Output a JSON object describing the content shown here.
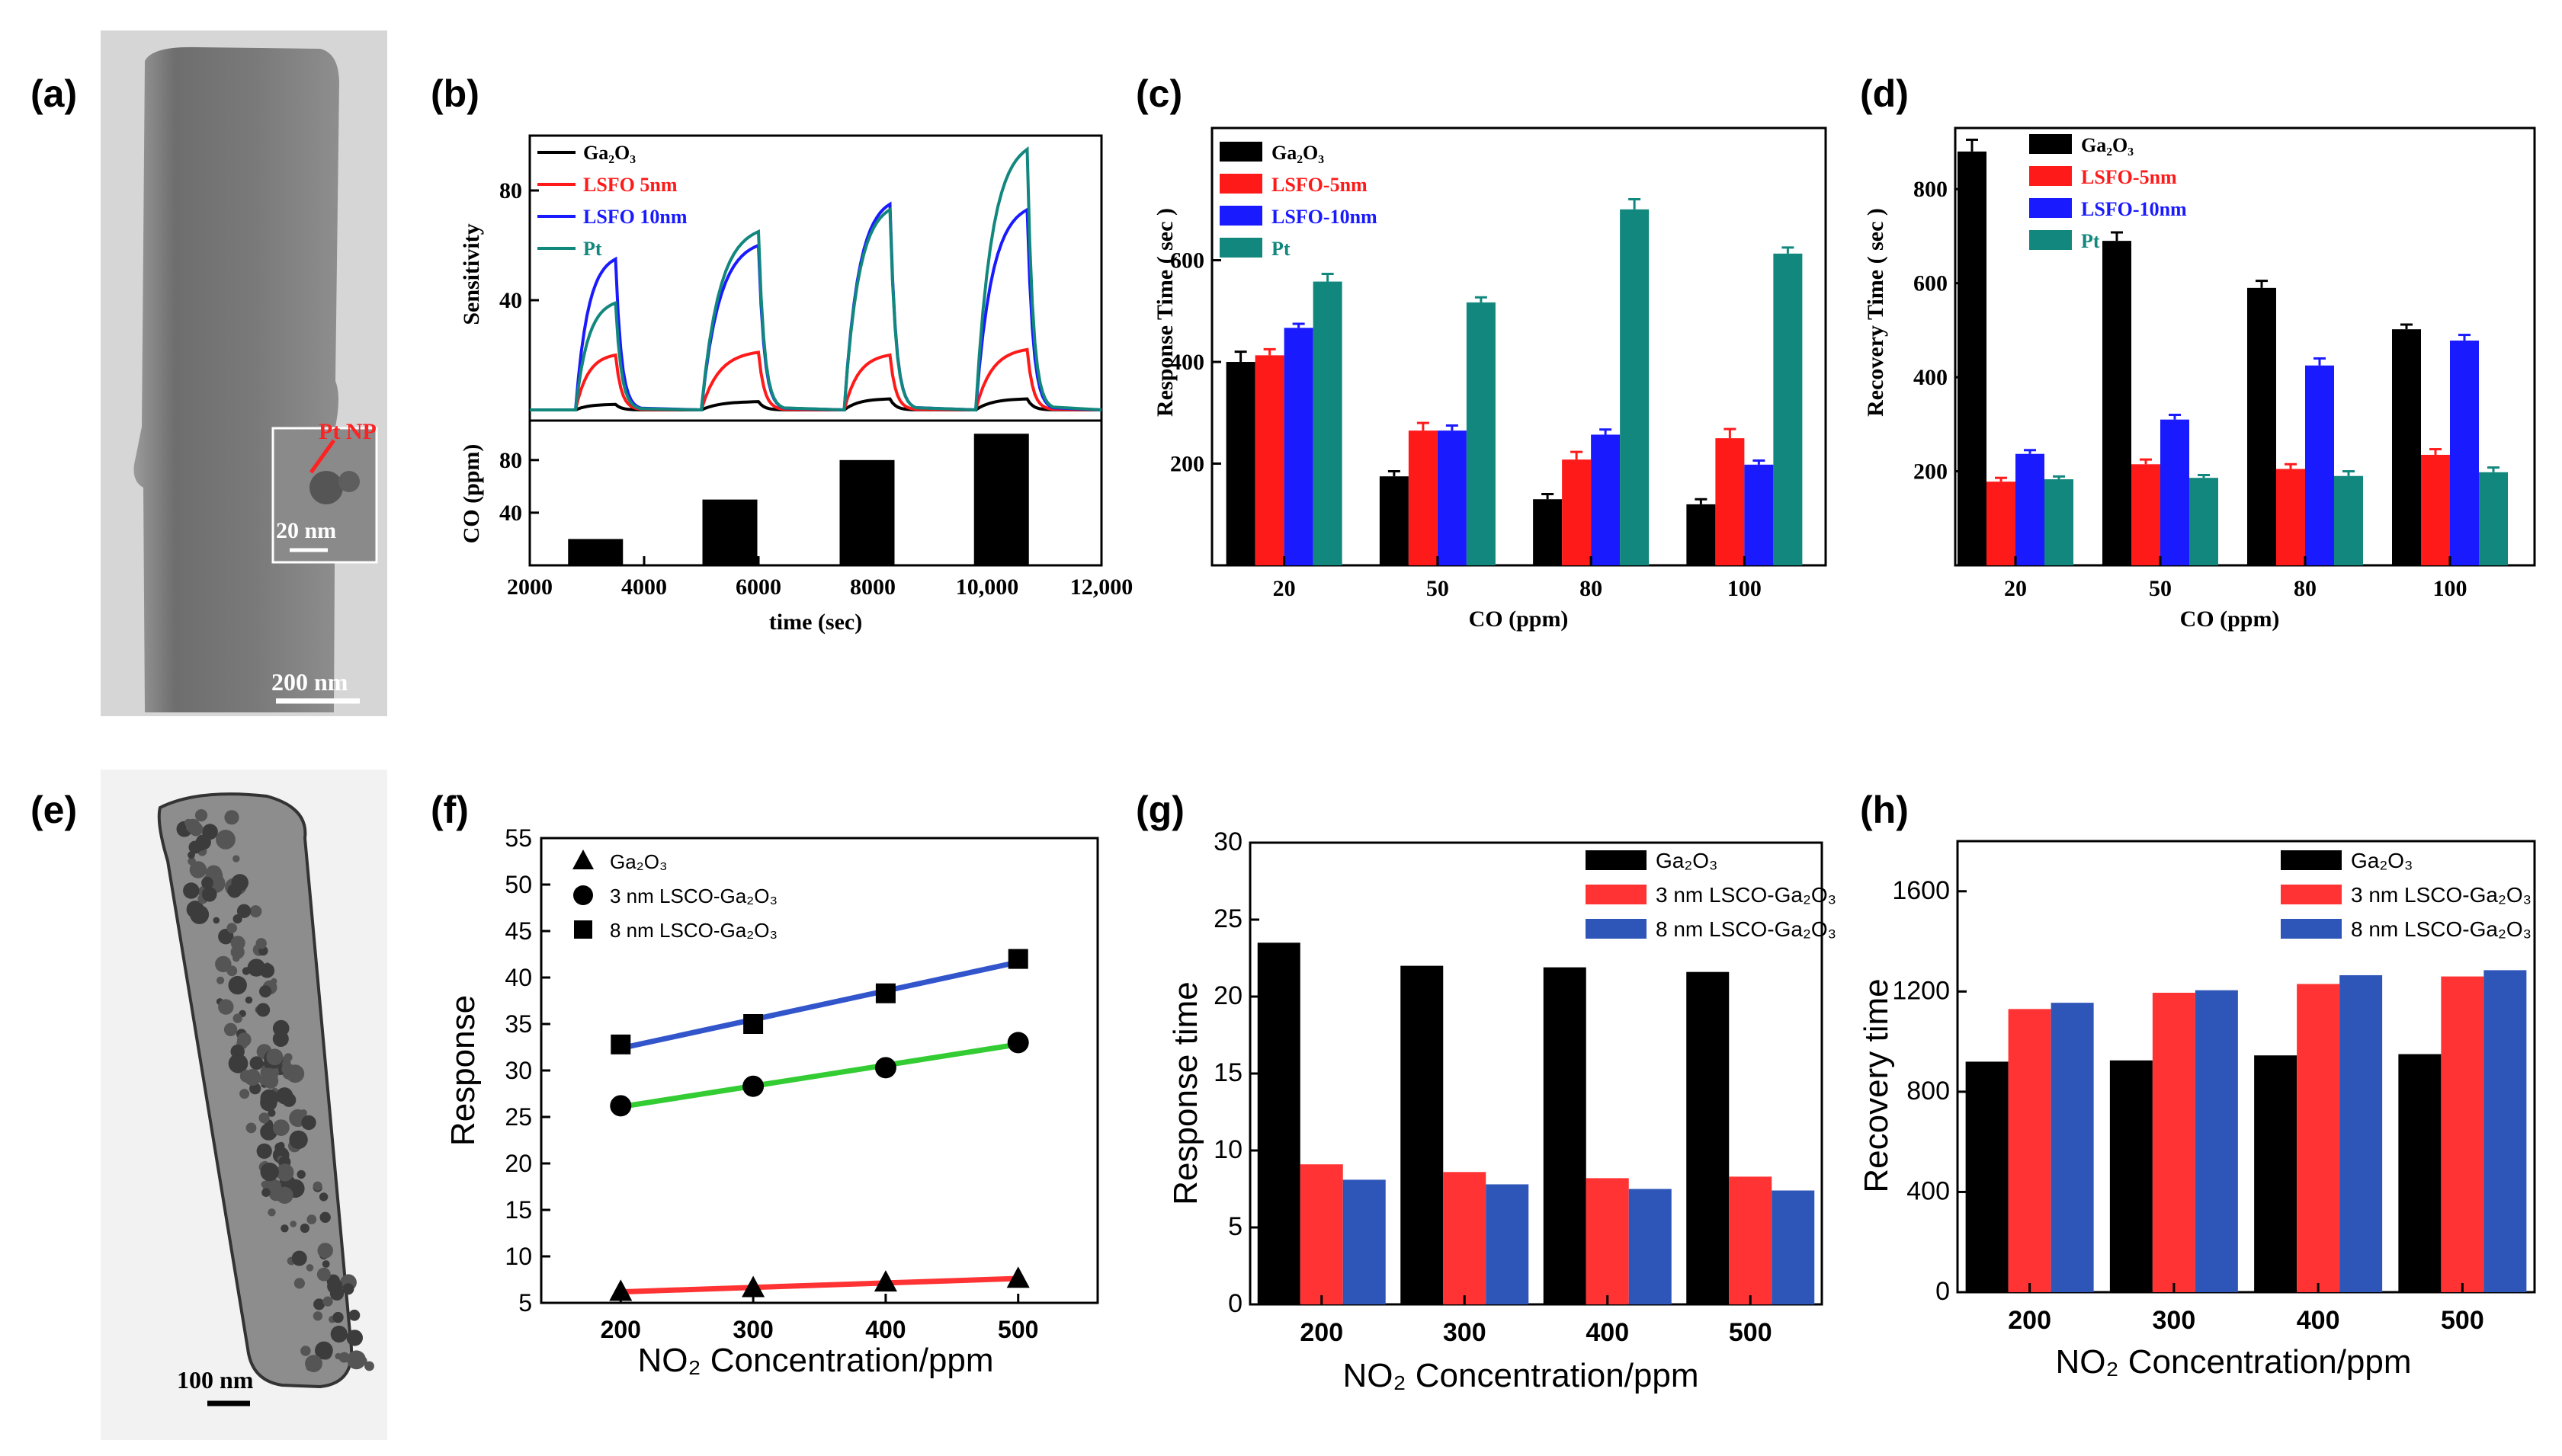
{
  "panels": {
    "a": {
      "label": "(a)",
      "inset_label": "Pt NP",
      "inset_scale": "20 nm",
      "scale": "200 nm"
    },
    "e": {
      "label": "(e)",
      "scale": "100 nm"
    }
  },
  "colors": {
    "black": "#000000",
    "red": "#ff1a1a",
    "blue": "#1a1aff",
    "teal": "#12877d",
    "g_red": "#ff3333",
    "g_blue": "#2e55b8",
    "fit_green": "#33cc33",
    "fit_red": "#ff3333",
    "fit_blue": "#3355cc"
  },
  "chart_data": [
    {
      "id": "b",
      "type": "line",
      "label": "(b)",
      "ylabel_top": "Sensitivity",
      "ylabel_bottom": "CO (ppm)",
      "xlabel": "time (sec)",
      "xlim": [
        2000,
        12000
      ],
      "xticks": [
        "2000",
        "4000",
        "6000",
        "8000",
        "10,000",
        "12,000"
      ],
      "ylim_top": [
        0,
        100
      ],
      "yticks_top": [
        "40",
        "80"
      ],
      "ylim_bottom": [
        0,
        110
      ],
      "yticks_bottom": [
        "40",
        "80"
      ],
      "legend": [
        "Ga₂O₃",
        "LSFO 5nm",
        "LSFO 10nm",
        "Pt"
      ],
      "pulses": [
        {
          "start": 2800,
          "end": 3500,
          "co_ppm": 20,
          "peaks": {
            "Ga2O3": 2,
            "LSFO 5nm": 20,
            "LSFO 10nm": 55,
            "Pt": 39
          }
        },
        {
          "start": 5000,
          "end": 6000,
          "co_ppm": 50,
          "peaks": {
            "Ga2O3": 3,
            "LSFO 5nm": 21,
            "LSFO 10nm": 60,
            "Pt": 65
          }
        },
        {
          "start": 7500,
          "end": 8300,
          "co_ppm": 80,
          "peaks": {
            "Ga2O3": 4,
            "LSFO 5nm": 20,
            "LSFO 10nm": 75,
            "Pt": 73
          }
        },
        {
          "start": 9800,
          "end": 10700,
          "co_ppm": 100,
          "peaks": {
            "Ga2O3": 4,
            "LSFO 5nm": 22,
            "LSFO 10nm": 73,
            "Pt": 95
          }
        }
      ]
    },
    {
      "id": "c",
      "type": "bar",
      "label": "(c)",
      "style": "serif",
      "ylabel": "Response Time ( sec )",
      "xlabel": "CO (ppm)",
      "categories": [
        "20",
        "50",
        "80",
        "100"
      ],
      "ylim": [
        0,
        860
      ],
      "yticks": [
        "200",
        "400",
        "600"
      ],
      "series": [
        {
          "name": "Ga₂O₃",
          "color": "#000000",
          "values": [
            400,
            175,
            130,
            120
          ],
          "errors": [
            20,
            10,
            10,
            10
          ]
        },
        {
          "name": "LSFO-5nm",
          "color": "#ff1a1a",
          "values": [
            413,
            265,
            208,
            250
          ],
          "errors": [
            12,
            15,
            15,
            18
          ]
        },
        {
          "name": "LSFO-10nm",
          "color": "#1a1aff",
          "values": [
            467,
            265,
            257,
            198
          ],
          "errors": [
            8,
            10,
            10,
            8
          ]
        },
        {
          "name": "Pt",
          "color": "#12877d",
          "values": [
            558,
            517,
            700,
            613
          ],
          "errors": [
            15,
            10,
            20,
            12
          ]
        }
      ]
    },
    {
      "id": "d",
      "type": "bar",
      "label": "(d)",
      "style": "serif",
      "ylabel": "Recovery Time ( sec )",
      "xlabel": "CO (ppm)",
      "categories": [
        "20",
        "50",
        "80",
        "100"
      ],
      "ylim": [
        0,
        930
      ],
      "yticks": [
        "200",
        "400",
        "600",
        "800"
      ],
      "series": [
        {
          "name": "Ga₂O₃",
          "color": "#000000",
          "values": [
            880,
            690,
            590,
            502
          ],
          "errors": [
            25,
            18,
            15,
            10
          ]
        },
        {
          "name": "LSFO-5nm",
          "color": "#ff1a1a",
          "values": [
            178,
            215,
            205,
            235
          ],
          "errors": [
            8,
            10,
            10,
            12
          ]
        },
        {
          "name": "LSFO-10nm",
          "color": "#1a1aff",
          "values": [
            237,
            310,
            425,
            478
          ],
          "errors": [
            8,
            10,
            15,
            12
          ]
        },
        {
          "name": "Pt",
          "color": "#12877d",
          "values": [
            183,
            186,
            190,
            198
          ],
          "errors": [
            6,
            6,
            10,
            10
          ]
        }
      ]
    },
    {
      "id": "f",
      "type": "scatter",
      "label": "(f)",
      "ylabel": "Response",
      "xlabel": "NO₂ Concentration/ppm",
      "x": [
        200,
        300,
        400,
        500
      ],
      "xlim": [
        140,
        560
      ],
      "ylim": [
        5,
        55
      ],
      "xticks": [
        "200",
        "300",
        "400",
        "500"
      ],
      "yticks": [
        "5",
        "10",
        "15",
        "20",
        "25",
        "30",
        "35",
        "40",
        "45",
        "50",
        "55"
      ],
      "series": [
        {
          "name": "Ga₂O₃",
          "marker": "triangle",
          "fit": "#ff3333",
          "values": [
            6.2,
            6.6,
            7.2,
            7.6
          ]
        },
        {
          "name": "3 nm LSCO-Ga₂O₃",
          "marker": "circle",
          "fit": "#33cc33",
          "values": [
            26.2,
            28.3,
            30.3,
            33.0
          ]
        },
        {
          "name": "8 nm LSCO-Ga₂O₃",
          "marker": "square",
          "fit": "#3355cc",
          "values": [
            32.8,
            35.0,
            38.3,
            42.0
          ]
        }
      ]
    },
    {
      "id": "g",
      "type": "bar",
      "label": "(g)",
      "style": "sans",
      "ylabel": "Response time",
      "xlabel": "NO₂ Concentration/ppm",
      "categories": [
        "200",
        "300",
        "400",
        "500"
      ],
      "ylim": [
        0,
        30
      ],
      "yticks": [
        "0",
        "5",
        "10",
        "15",
        "20",
        "25",
        "30"
      ],
      "series": [
        {
          "name": "Ga₂O₃",
          "color": "#000000",
          "values": [
            23.5,
            22.0,
            21.9,
            21.6
          ]
        },
        {
          "name": "3 nm LSCO-Ga₂O₃",
          "color": "#ff3333",
          "values": [
            9.1,
            8.6,
            8.2,
            8.3
          ]
        },
        {
          "name": "8 nm LSCO-Ga₂O₃",
          "color": "#2e55b8",
          "values": [
            8.1,
            7.8,
            7.5,
            7.4
          ]
        }
      ]
    },
    {
      "id": "h",
      "type": "bar",
      "label": "(h)",
      "style": "sans",
      "ylabel": "Recovery time",
      "xlabel": "NO₂ Concentration/ppm",
      "categories": [
        "200",
        "300",
        "400",
        "500"
      ],
      "ylim": [
        0,
        1800
      ],
      "yticks": [
        "0",
        "400",
        "800",
        "1200",
        "1600"
      ],
      "series": [
        {
          "name": "Ga₂O₃",
          "color": "#000000",
          "values": [
            920,
            925,
            945,
            950
          ]
        },
        {
          "name": "3 nm LSCO-Ga₂O₃",
          "color": "#ff3333",
          "values": [
            1130,
            1195,
            1230,
            1260
          ]
        },
        {
          "name": "8 nm LSCO-Ga₂O₃",
          "color": "#2e55b8",
          "values": [
            1155,
            1205,
            1265,
            1285
          ]
        }
      ]
    }
  ]
}
